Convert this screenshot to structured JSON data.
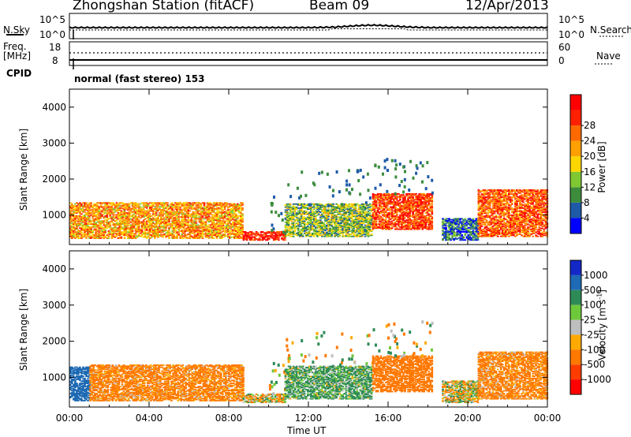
{
  "header": {
    "station": "Zhongshan Station (fitACF)",
    "beam": "Beam 09",
    "date": "12/Apr/2013"
  },
  "strip_labels": {
    "nsky": "N.Sky",
    "nsearch": "N.Search",
    "freq_line1": "Freq.",
    "freq_line2": "[MHz]",
    "nave": "Nave",
    "cpid": "CPID",
    "mode": "normal (fast stereo) 153",
    "nsky_ticks": [
      "10^5",
      "10^0"
    ],
    "nsearch_ticks": [
      "10^5",
      "10^0"
    ],
    "freq_ticks": [
      "18",
      "8"
    ],
    "nave_ticks": [
      "60",
      "0"
    ]
  },
  "colors": {
    "power_scale": [
      "#0000ff",
      "#1e5aa8",
      "#3c8c3c",
      "#7fc832",
      "#ffd700",
      "#ffa000",
      "#ff6a00",
      "#ff2000",
      "#ff0000"
    ],
    "velocity_scale": [
      "#1428c8",
      "#1e6ab4",
      "#2e8b57",
      "#6ec83c",
      "#bebebe",
      "#ffaa00",
      "#ff7800",
      "#ff3c00",
      "#ff0000"
    ]
  },
  "chart_data": [
    {
      "type": "heatmap",
      "name": "power",
      "ylabel": "Slant Range [km]",
      "xlim": [
        "00:00",
        "24:00"
      ],
      "ylim": [
        180,
        4500
      ],
      "x_ticks": [
        "00:00",
        "04:00",
        "08:00",
        "12:00",
        "16:00",
        "20:00",
        "00:00"
      ],
      "y_ticks": [
        1000,
        2000,
        3000,
        4000
      ],
      "colorbar": {
        "label": "Power [dB]",
        "ticks": [
          "4",
          "8",
          "12",
          "16",
          "20",
          "24",
          "28"
        ],
        "range": [
          0,
          32
        ]
      },
      "regions": [
        {
          "t": [
            0.0,
            8.7
          ],
          "range_km": [
            350,
            1350
          ],
          "level_db": 20
        },
        {
          "t": [
            8.7,
            10.8
          ],
          "range_km": [
            300,
            550
          ],
          "level_db": 28
        },
        {
          "t": [
            10.8,
            15.2
          ],
          "range_km": [
            400,
            1300
          ],
          "level_db": 12
        },
        {
          "t": [
            15.2,
            18.2
          ],
          "range_km": [
            600,
            1600
          ],
          "level_db": 26
        },
        {
          "t": [
            18.7,
            20.5
          ],
          "range_km": [
            300,
            900
          ],
          "level_db": 6
        },
        {
          "t": [
            20.5,
            24.0
          ],
          "range_km": [
            400,
            1700
          ],
          "level_db": 24
        }
      ]
    },
    {
      "type": "heatmap",
      "name": "velocity",
      "ylabel": "Slant Range [km]",
      "xlabel": "Time UT",
      "xlim": [
        "00:00",
        "24:00"
      ],
      "ylim": [
        180,
        4500
      ],
      "x_ticks": [
        "00:00",
        "04:00",
        "08:00",
        "12:00",
        "16:00",
        "20:00",
        "00:00"
      ],
      "y_ticks": [
        1000,
        2000,
        3000,
        4000
      ],
      "colorbar": {
        "label": "Velocity [m s^-1]",
        "ticks": [
          "1000",
          "500",
          "100",
          "25",
          "-25",
          "-100",
          "-500",
          "-1000"
        ]
      },
      "regions": [
        {
          "t": [
            0.0,
            1.0
          ],
          "range_km": [
            350,
            1300
          ],
          "velocity": 800
        },
        {
          "t": [
            1.0,
            8.7
          ],
          "range_km": [
            350,
            1350
          ],
          "velocity": -200
        },
        {
          "t": [
            8.7,
            10.8
          ],
          "range_km": [
            300,
            550
          ],
          "velocity": -50
        },
        {
          "t": [
            10.8,
            15.2
          ],
          "range_km": [
            400,
            1300
          ],
          "velocity": 150
        },
        {
          "t": [
            15.2,
            18.2
          ],
          "range_km": [
            600,
            1600
          ],
          "velocity": -300
        },
        {
          "t": [
            18.7,
            20.5
          ],
          "range_km": [
            300,
            900
          ],
          "velocity": 0
        },
        {
          "t": [
            20.5,
            24.0
          ],
          "range_km": [
            400,
            1700
          ],
          "velocity": -200
        }
      ]
    }
  ]
}
